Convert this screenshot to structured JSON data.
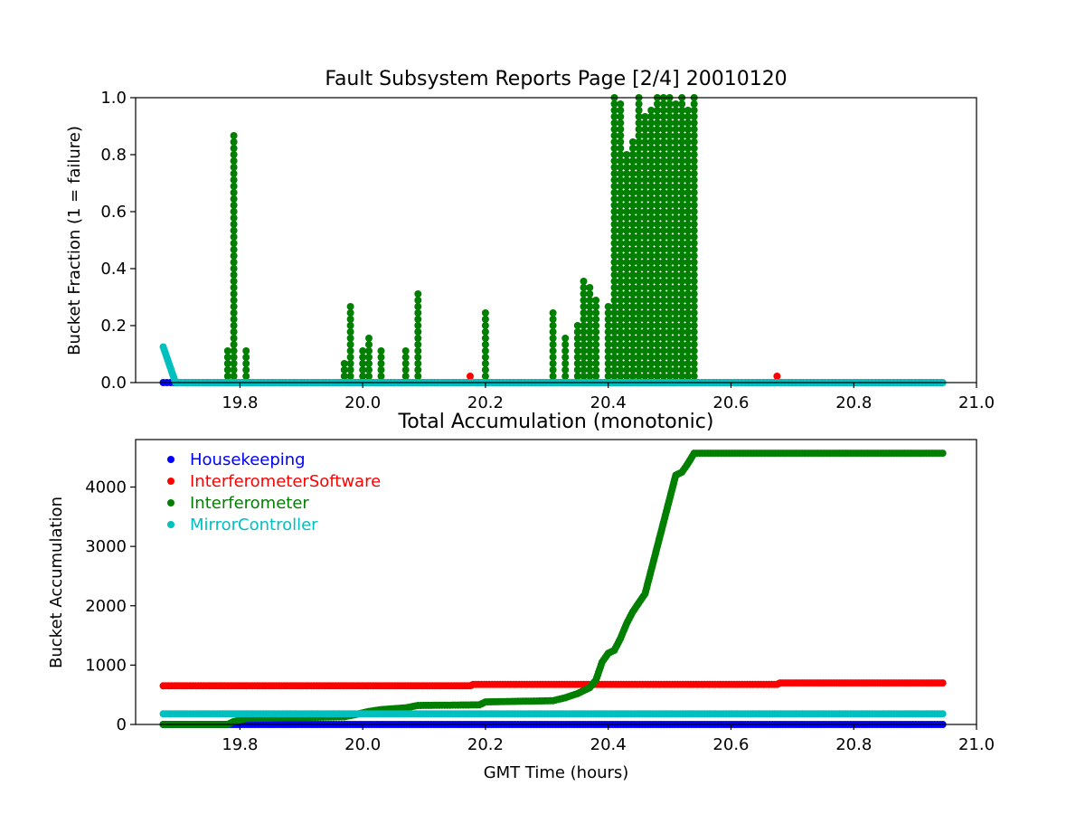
{
  "chart_data": [
    {
      "type": "scatter",
      "title": "Fault Subsystem Reports Page [2/4] 20010120",
      "xlabel": "",
      "ylabel": "Bucket Fraction (1 = failure)",
      "xlim": [
        19.63,
        21.0
      ],
      "ylim": [
        0.0,
        1.0
      ],
      "xticks": [
        "19.8",
        "20.0",
        "20.2",
        "20.4",
        "20.6",
        "20.8",
        "21.0"
      ],
      "yticks": [
        "0.0",
        "0.2",
        "0.4",
        "0.6",
        "0.8",
        "1.0"
      ],
      "grid": false,
      "series": [
        {
          "color": "#0000ff",
          "x_range": [
            19.675,
            20.945
          ],
          "values": "constant 0.0"
        },
        {
          "color": "#ff0000",
          "baseline": 0.0,
          "spikes": [
            {
              "x": 20.175,
              "y": 0.03
            },
            {
              "x": 20.675,
              "y": 0.03
            }
          ]
        },
        {
          "color": "#007f00",
          "baseline": 0.0,
          "spikes": [
            {
              "x": 19.78,
              "y": 0.12
            },
            {
              "x": 19.79,
              "y": 0.87
            },
            {
              "x": 19.81,
              "y": 0.12
            },
            {
              "x": 19.97,
              "y": 0.07
            },
            {
              "x": 19.98,
              "y": 0.27
            },
            {
              "x": 20.0,
              "y": 0.12
            },
            {
              "x": 20.01,
              "y": 0.17
            },
            {
              "x": 20.03,
              "y": 0.12
            },
            {
              "x": 20.07,
              "y": 0.12
            },
            {
              "x": 20.09,
              "y": 0.32
            },
            {
              "x": 20.2,
              "y": 0.26
            },
            {
              "x": 20.31,
              "y": 0.25
            },
            {
              "x": 20.33,
              "y": 0.17
            },
            {
              "x": 20.35,
              "y": 0.2
            },
            {
              "x": 20.36,
              "y": 0.37
            },
            {
              "x": 20.37,
              "y": 0.35
            },
            {
              "x": 20.38,
              "y": 0.3
            },
            {
              "x": 20.4,
              "y": 0.27
            },
            {
              "x": 20.41,
              "y": 1.0
            },
            {
              "x": 20.42,
              "y": 0.98
            },
            {
              "x": 20.43,
              "y": 0.8
            },
            {
              "x": 20.44,
              "y": 0.85
            },
            {
              "x": 20.45,
              "y": 1.0
            },
            {
              "x": 20.46,
              "y": 0.95
            },
            {
              "x": 20.47,
              "y": 0.97
            },
            {
              "x": 20.48,
              "y": 1.0
            },
            {
              "x": 20.49,
              "y": 1.0
            },
            {
              "x": 20.5,
              "y": 1.0
            },
            {
              "x": 20.51,
              "y": 0.99
            },
            {
              "x": 20.52,
              "y": 1.0
            },
            {
              "x": 20.53,
              "y": 0.96
            },
            {
              "x": 20.54,
              "y": 1.0
            }
          ]
        },
        {
          "color": "#00bfbf",
          "points": [
            [
              19.675,
              0.125
            ],
            [
              19.695,
              0.0
            ],
            [
              20.945,
              0.0
            ]
          ]
        }
      ]
    },
    {
      "type": "scatter",
      "title": "Total Accumulation (monotonic)",
      "xlabel": "GMT Time (hours)",
      "ylabel": "Bucket Accumulation",
      "xlim": [
        19.63,
        21.0
      ],
      "ylim": [
        0,
        4800
      ],
      "xticks": [
        "19.8",
        "20.0",
        "20.2",
        "20.4",
        "20.6",
        "20.8",
        "21.0"
      ],
      "yticks": [
        "0",
        "1000",
        "2000",
        "3000",
        "4000"
      ],
      "grid": false,
      "legend": "top-left",
      "series": [
        {
          "name": "Housekeeping",
          "color": "#0000ff",
          "points": [
            [
              19.675,
              0
            ],
            [
              20.945,
              0
            ]
          ]
        },
        {
          "name": "InterferometerSoftware",
          "color": "#ff0000",
          "points": [
            [
              19.675,
              650
            ],
            [
              20.175,
              650
            ],
            [
              20.18,
              675
            ],
            [
              20.675,
              675
            ],
            [
              20.68,
              700
            ],
            [
              20.945,
              700
            ]
          ]
        },
        {
          "name": "Interferometer",
          "color": "#007f00",
          "points": [
            [
              19.675,
              0
            ],
            [
              19.78,
              0
            ],
            [
              19.79,
              50
            ],
            [
              19.81,
              100
            ],
            [
              19.97,
              130
            ],
            [
              19.99,
              170
            ],
            [
              20.01,
              220
            ],
            [
              20.03,
              250
            ],
            [
              20.07,
              280
            ],
            [
              20.09,
              320
            ],
            [
              20.19,
              330
            ],
            [
              20.2,
              380
            ],
            [
              20.31,
              400
            ],
            [
              20.33,
              450
            ],
            [
              20.35,
              520
            ],
            [
              20.37,
              620
            ],
            [
              20.38,
              750
            ],
            [
              20.39,
              1050
            ],
            [
              20.4,
              1200
            ],
            [
              20.41,
              1250
            ],
            [
              20.42,
              1450
            ],
            [
              20.43,
              1700
            ],
            [
              20.44,
              1900
            ],
            [
              20.45,
              2050
            ],
            [
              20.46,
              2200
            ],
            [
              20.47,
              2600
            ],
            [
              20.48,
              3000
            ],
            [
              20.49,
              3400
            ],
            [
              20.5,
              3800
            ],
            [
              20.51,
              4200
            ],
            [
              20.52,
              4250
            ],
            [
              20.53,
              4400
            ],
            [
              20.54,
              4570
            ],
            [
              20.945,
              4570
            ]
          ]
        },
        {
          "name": "MirrorController",
          "color": "#00bfbf",
          "points": [
            [
              19.675,
              180
            ],
            [
              20.945,
              180
            ]
          ]
        }
      ]
    }
  ]
}
